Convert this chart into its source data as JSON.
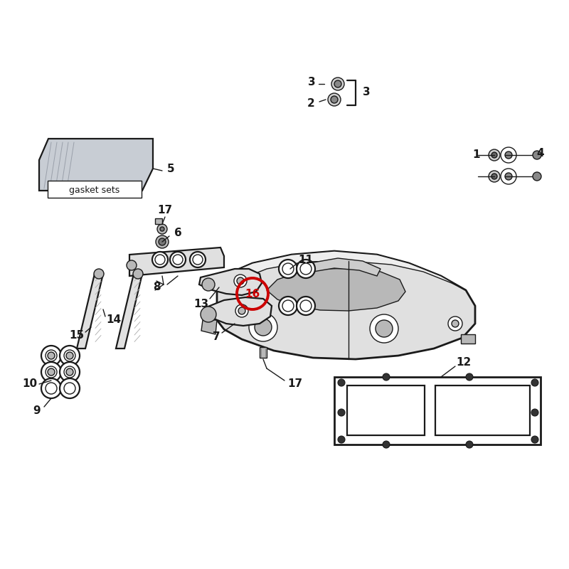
{
  "bg_color": "#ffffff",
  "line_color": "#1a1a1a",
  "label_color": "#1a1a1a",
  "highlight_color": "#cc0000",
  "fig_w": 8.0,
  "fig_h": 8.0,
  "dpi": 100,
  "lw_main": 1.6,
  "lw_thin": 1.0,
  "lw_heavy": 2.0,
  "part_fill": "#e0e0e0",
  "part_fill_dark": "#b8b8b8",
  "part_fill_light": "#eeeeee",
  "gasket_fill": "#d0d0d0"
}
